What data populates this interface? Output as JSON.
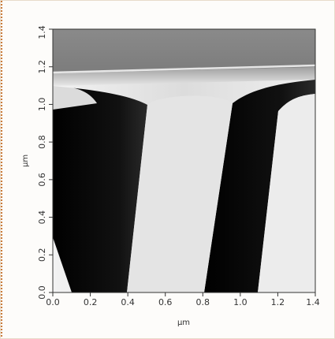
{
  "figure": {
    "x_axis": {
      "unit_label": "µm",
      "range": [
        0.0,
        1.4
      ],
      "ticks": [
        "0.0",
        "0.2",
        "0.4",
        "0.6",
        "0.8",
        "1.0",
        "1.2",
        "1.4"
      ]
    },
    "y_axis": {
      "unit_label": "µm",
      "range": [
        0.0,
        1.4
      ],
      "ticks": [
        "0.0",
        "0.2",
        "0.4",
        "0.6",
        "0.8",
        "1.0",
        "1.2",
        "1.4"
      ]
    },
    "colors": {
      "frame": "#e8dccb",
      "accent": "#c97b3a",
      "dark_band": "#0b0b0b",
      "light_field": "#e9e9e9",
      "top_field": "#8a8a8a"
    }
  }
}
